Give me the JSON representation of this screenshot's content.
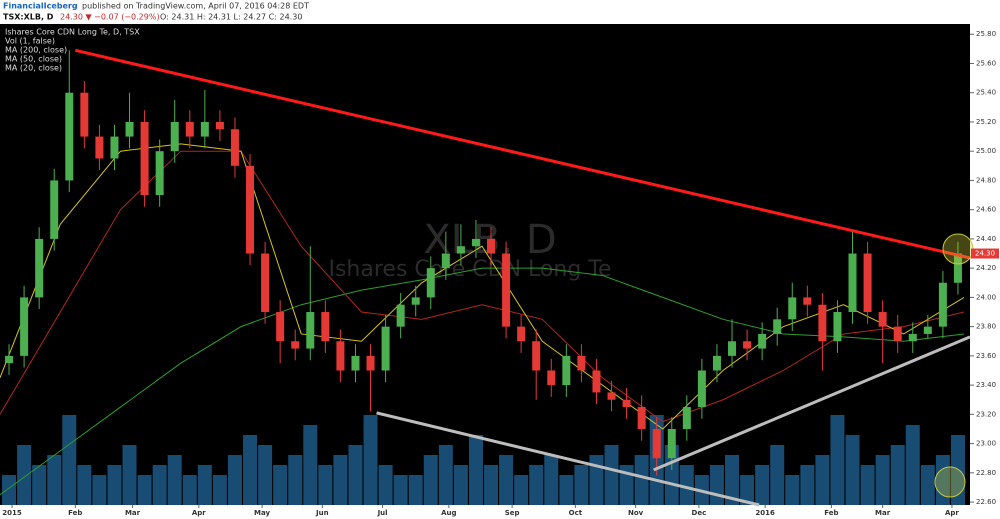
{
  "header": {
    "brand": "FinancialIceberg",
    "published": "published on TradingView.com, April 07, 2016 04:28 EDT",
    "symbol": "TSX:XLB, D",
    "quote": "24.30 ▼ −0.07 (−0.29%)",
    "ohlc": "O: 24.31 H: 24.31 L: 24.27 C: 24.30"
  },
  "chart_data": {
    "type": "candlestick",
    "legend_lines": [
      "Ishares Core CDN Long Te, D, TSX",
      "Vol (1, false)",
      "MA (200, close)",
      "MA (50, close)",
      "MA (20, close)"
    ],
    "watermark": "XLB, D",
    "watermark_subtitle": "Ishares Core CDN Long Te",
    "up_color": "#4caf50",
    "down_color": "#e53935",
    "volume_color": "#1f5f8f",
    "xlim": [
      0,
      322
    ],
    "ylim": [
      22.58,
      25.87
    ],
    "xticks": [
      {
        "value": 4,
        "label": "2015"
      },
      {
        "value": 25,
        "label": "Feb"
      },
      {
        "value": 44,
        "label": "Mar"
      },
      {
        "value": 66,
        "label": "Apr"
      },
      {
        "value": 87,
        "label": "May"
      },
      {
        "value": 107,
        "label": "Jun"
      },
      {
        "value": 127,
        "label": "Jul"
      },
      {
        "value": 149,
        "label": "Aug"
      },
      {
        "value": 170,
        "label": "Sep"
      },
      {
        "value": 191,
        "label": "Oct"
      },
      {
        "value": 211,
        "label": "Nov"
      },
      {
        "value": 232,
        "label": "Dec"
      },
      {
        "value": 254,
        "label": "2016"
      },
      {
        "value": 276,
        "label": "Feb"
      },
      {
        "value": 293,
        "label": "Mar"
      },
      {
        "value": 316,
        "label": "Apr"
      }
    ],
    "yticks": [
      {
        "value": 22.6,
        "label": "22.60"
      },
      {
        "value": 22.8,
        "label": "22.80"
      },
      {
        "value": 23.0,
        "label": "23.00"
      },
      {
        "value": 23.2,
        "label": "23.20"
      },
      {
        "value": 23.4,
        "label": "23.40"
      },
      {
        "value": 23.6,
        "label": "23.60"
      },
      {
        "value": 23.8,
        "label": "23.80"
      },
      {
        "value": 24.0,
        "label": "24.00"
      },
      {
        "value": 24.2,
        "label": "24.20"
      },
      {
        "value": 24.4,
        "label": "24.40"
      },
      {
        "value": 24.6,
        "label": "24.60"
      },
      {
        "value": 24.8,
        "label": "24.80"
      },
      {
        "value": 25.0,
        "label": "25.00"
      },
      {
        "value": 25.2,
        "label": "25.20"
      },
      {
        "value": 25.4,
        "label": "25.40"
      },
      {
        "value": 25.6,
        "label": "25.60"
      },
      {
        "value": 25.8,
        "label": "25.80"
      }
    ],
    "last_price": {
      "value": 24.3,
      "label": "24.30"
    },
    "x": [
      3,
      8,
      13,
      18,
      23,
      28,
      33,
      38,
      43,
      48,
      53,
      58,
      63,
      68,
      73,
      78,
      83,
      88,
      93,
      98,
      103,
      108,
      113,
      118,
      123,
      128,
      133,
      138,
      143,
      148,
      153,
      158,
      163,
      168,
      173,
      178,
      183,
      188,
      193,
      198,
      203,
      208,
      213,
      218,
      223,
      228,
      233,
      238,
      243,
      248,
      253,
      258,
      263,
      268,
      273,
      278,
      283,
      288,
      293,
      298,
      303,
      308,
      313,
      318
    ],
    "open": [
      23.55,
      23.6,
      24.0,
      24.4,
      24.8,
      25.4,
      25.1,
      24.95,
      25.1,
      25.2,
      24.7,
      25.0,
      25.2,
      25.1,
      25.2,
      25.15,
      24.9,
      24.3,
      23.9,
      23.7,
      23.65,
      23.9,
      23.7,
      23.5,
      23.6,
      23.5,
      23.8,
      23.95,
      24.0,
      24.2,
      24.3,
      24.35,
      24.4,
      24.3,
      23.8,
      23.7,
      23.5,
      23.4,
      23.6,
      23.5,
      23.35,
      23.3,
      23.25,
      23.1,
      22.9,
      23.1,
      23.25,
      23.5,
      23.6,
      23.7,
      23.65,
      23.75,
      23.85,
      24.0,
      23.95,
      23.7,
      23.9,
      24.3,
      23.9,
      23.8,
      23.7,
      23.75,
      23.8,
      24.1
    ],
    "high": [
      23.68,
      24.08,
      24.48,
      24.88,
      25.69,
      25.48,
      25.18,
      25.18,
      25.4,
      25.28,
      25.08,
      25.35,
      25.28,
      25.42,
      25.28,
      25.23,
      24.98,
      24.38,
      23.98,
      23.78,
      24.35,
      23.98,
      23.78,
      23.68,
      23.68,
      23.88,
      24.03,
      24.08,
      24.28,
      24.45,
      24.5,
      24.53,
      24.48,
      24.38,
      23.88,
      23.78,
      23.58,
      23.68,
      23.68,
      23.58,
      23.43,
      23.38,
      23.33,
      23.18,
      23.18,
      23.33,
      23.58,
      23.68,
      23.85,
      23.78,
      23.83,
      23.93,
      24.1,
      24.08,
      24.03,
      23.98,
      24.45,
      24.38,
      23.98,
      23.88,
      23.83,
      23.88,
      24.18,
      24.38
    ],
    "low": [
      23.47,
      23.52,
      23.92,
      24.32,
      24.72,
      25.02,
      24.87,
      24.87,
      25.02,
      24.62,
      24.62,
      24.92,
      25.02,
      25.02,
      25.07,
      24.82,
      24.22,
      23.82,
      23.55,
      23.57,
      23.57,
      23.62,
      23.42,
      23.42,
      23.22,
      23.42,
      23.72,
      23.87,
      23.92,
      24.12,
      24.22,
      24.27,
      24.22,
      23.72,
      23.62,
      23.3,
      23.32,
      23.32,
      23.42,
      23.27,
      23.22,
      23.17,
      23.02,
      22.78,
      22.82,
      23.02,
      23.17,
      23.42,
      23.52,
      23.57,
      23.57,
      23.67,
      23.77,
      23.87,
      23.5,
      23.62,
      23.82,
      23.82,
      23.55,
      23.62,
      23.62,
      23.72,
      23.72,
      24.02
    ],
    "close": [
      23.6,
      24.0,
      24.4,
      24.8,
      25.4,
      25.1,
      24.95,
      25.1,
      25.2,
      24.7,
      25.0,
      25.2,
      25.1,
      25.2,
      25.15,
      24.9,
      24.3,
      23.9,
      23.7,
      23.65,
      23.9,
      23.7,
      23.5,
      23.6,
      23.5,
      23.8,
      23.95,
      24.0,
      24.2,
      24.3,
      24.35,
      24.4,
      24.3,
      23.8,
      23.7,
      23.5,
      23.4,
      23.6,
      23.5,
      23.35,
      23.3,
      23.25,
      23.1,
      22.9,
      23.1,
      23.25,
      23.5,
      23.6,
      23.7,
      23.65,
      23.75,
      23.85,
      24.0,
      23.95,
      23.7,
      23.9,
      24.3,
      23.9,
      23.8,
      23.7,
      23.75,
      23.8,
      24.1,
      24.3
    ],
    "volume": [
      3,
      6,
      4,
      5,
      9,
      4,
      3,
      4,
      6,
      3,
      4,
      5,
      3,
      4,
      3,
      5,
      7,
      6,
      4,
      5,
      8,
      4,
      5,
      6,
      9,
      4,
      3,
      3,
      5,
      6,
      4,
      7,
      4,
      5,
      3,
      4,
      5,
      3,
      4,
      5,
      6,
      4,
      5,
      9,
      6,
      4,
      3,
      4,
      5,
      3,
      4,
      6,
      3,
      4,
      5,
      9,
      7,
      4,
      5,
      6,
      8,
      4,
      5,
      7
    ],
    "series": [
      {
        "name": "MA (200, close)",
        "color": "#2e9e2e",
        "x": [
          0,
          20,
          40,
          60,
          80,
          100,
          120,
          140,
          160,
          180,
          200,
          220,
          240,
          260,
          280,
          300,
          320
        ],
        "values": [
          22.65,
          22.95,
          23.25,
          23.55,
          23.8,
          23.95,
          24.05,
          24.12,
          24.2,
          24.2,
          24.15,
          24.0,
          23.85,
          23.75,
          23.73,
          23.7,
          23.75
        ]
      },
      {
        "name": "MA (50, close)",
        "color": "#b3261e",
        "x": [
          0,
          20,
          40,
          60,
          80,
          100,
          120,
          140,
          160,
          180,
          200,
          220,
          240,
          260,
          280,
          300,
          320
        ],
        "values": [
          23.2,
          23.9,
          24.6,
          25.0,
          25.0,
          24.35,
          23.9,
          23.85,
          23.95,
          23.85,
          23.45,
          23.15,
          23.3,
          23.5,
          23.75,
          23.8,
          23.9
        ]
      },
      {
        "name": "MA (20, close)",
        "color": "#d6c21f",
        "x": [
          0,
          20,
          40,
          60,
          80,
          100,
          120,
          140,
          160,
          180,
          200,
          220,
          240,
          260,
          280,
          300,
          320
        ],
        "values": [
          23.45,
          24.5,
          25.0,
          25.05,
          25.0,
          23.75,
          23.7,
          24.1,
          24.35,
          23.7,
          23.4,
          23.1,
          23.5,
          23.8,
          23.95,
          23.75,
          24.0
        ]
      }
    ],
    "trendlines": [
      {
        "color": "#ff1a1a",
        "x": [
          25,
          322
        ],
        "y": [
          25.69,
          24.27
        ]
      },
      {
        "color": "#bdbdbd",
        "x": [
          125,
          252
        ],
        "y": [
          23.21,
          22.58
        ]
      },
      {
        "color": "#bdbdbd",
        "x": [
          217,
          322
        ],
        "y": [
          22.82,
          23.73
        ]
      }
    ]
  }
}
